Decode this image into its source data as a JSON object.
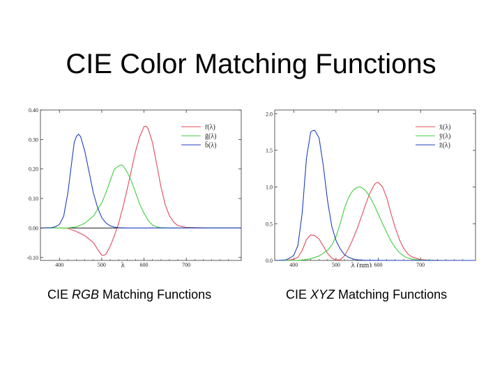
{
  "slide": {
    "title": "CIE Color Matching Functions"
  },
  "captions": [
    {
      "prefix": "CIE ",
      "italic": "RGB",
      "suffix": " Matching Functions"
    },
    {
      "prefix": "CIE ",
      "italic": "XYZ",
      "suffix": " Matching Functions"
    }
  ],
  "chart_data": [
    {
      "type": "line",
      "xlabel": "λ",
      "ylabel": "",
      "xlim": [
        355,
        830
      ],
      "ylim": [
        -0.11,
        0.4
      ],
      "x_ticks": [
        400,
        500,
        600,
        700
      ],
      "y_ticks": [
        -0.1,
        0.0,
        0.1,
        0.2,
        0.3,
        0.4
      ],
      "y_tick_labels": [
        "-0.10",
        "0.00",
        "0.10",
        "0.20",
        "0.30",
        "0.40"
      ],
      "zero_line": true,
      "legend_position": "top-right",
      "series": [
        {
          "name": "r̄(λ)",
          "base": "r",
          "color": "#e04a5a",
          "points": [
            [
              360,
              0.0
            ],
            [
              380,
              0.0
            ],
            [
              400,
              0.0
            ],
            [
              420,
              -0.001
            ],
            [
              440,
              -0.012
            ],
            [
              460,
              -0.026
            ],
            [
              480,
              -0.049
            ],
            [
              490,
              -0.072
            ],
            [
              500,
              -0.092
            ],
            [
              505,
              -0.093
            ],
            [
              510,
              -0.089
            ],
            [
              520,
              -0.062
            ],
            [
              530,
              -0.026
            ],
            [
              540,
              0.016
            ],
            [
              550,
              0.07
            ],
            [
              560,
              0.13
            ],
            [
              570,
              0.195
            ],
            [
              580,
              0.26
            ],
            [
              590,
              0.31
            ],
            [
              600,
              0.344
            ],
            [
              605,
              0.345
            ],
            [
              610,
              0.336
            ],
            [
              620,
              0.29
            ],
            [
              630,
              0.216
            ],
            [
              640,
              0.14
            ],
            [
              650,
              0.08
            ],
            [
              660,
              0.042
            ],
            [
              670,
              0.02
            ],
            [
              680,
              0.008
            ],
            [
              700,
              0.002
            ],
            [
              750,
              0.0
            ],
            [
              830,
              0.0
            ]
          ]
        },
        {
          "name": "ḡ(λ)",
          "base": "g",
          "color": "#3ecf3e",
          "points": [
            [
              360,
              0.0
            ],
            [
              380,
              0.0
            ],
            [
              400,
              0.0
            ],
            [
              420,
              0.0
            ],
            [
              440,
              0.004
            ],
            [
              460,
              0.016
            ],
            [
              480,
              0.04
            ],
            [
              500,
              0.085
            ],
            [
              510,
              0.12
            ],
            [
              520,
              0.16
            ],
            [
              530,
              0.2
            ],
            [
              540,
              0.21
            ],
            [
              546,
              0.214
            ],
            [
              550,
              0.212
            ],
            [
              560,
              0.19
            ],
            [
              570,
              0.16
            ],
            [
              580,
              0.12
            ],
            [
              590,
              0.08
            ],
            [
              600,
              0.05
            ],
            [
              610,
              0.025
            ],
            [
              620,
              0.01
            ],
            [
              630,
              0.004
            ],
            [
              640,
              0.001
            ],
            [
              660,
              0.0
            ],
            [
              700,
              0.0
            ],
            [
              830,
              0.0
            ]
          ]
        },
        {
          "name": "b̄(λ)",
          "base": "b",
          "color": "#1f3fbf",
          "points": [
            [
              360,
              0.0
            ],
            [
              380,
              0.001
            ],
            [
              390,
              0.004
            ],
            [
              400,
              0.012
            ],
            [
              410,
              0.04
            ],
            [
              420,
              0.12
            ],
            [
              430,
              0.235
            ],
            [
              435,
              0.29
            ],
            [
              440,
              0.31
            ],
            [
              445,
              0.318
            ],
            [
              450,
              0.31
            ],
            [
              460,
              0.26
            ],
            [
              470,
              0.19
            ],
            [
              480,
              0.12
            ],
            [
              490,
              0.07
            ],
            [
              500,
              0.035
            ],
            [
              510,
              0.017
            ],
            [
              520,
              0.007
            ],
            [
              530,
              0.003
            ],
            [
              540,
              0.001
            ],
            [
              560,
              0.0
            ],
            [
              600,
              0.0
            ],
            [
              830,
              0.0
            ]
          ]
        }
      ]
    },
    {
      "type": "line",
      "xlabel": "λ (nm)",
      "ylabel": "",
      "xlim": [
        355,
        830
      ],
      "ylim": [
        0,
        2.05
      ],
      "x_ticks": [
        400,
        500,
        600,
        700
      ],
      "y_ticks": [
        0.0,
        0.5,
        1.0,
        1.5,
        2.0
      ],
      "y_tick_labels": [
        "0.0",
        "0.5",
        "1.0",
        "1.5",
        "2.0"
      ],
      "zero_line": false,
      "legend_position": "top-right",
      "series": [
        {
          "name": "x̄(λ)",
          "base": "x",
          "color": "#e04a5a",
          "points": [
            [
              360,
              0.0
            ],
            [
              380,
              0.001
            ],
            [
              400,
              0.014
            ],
            [
              410,
              0.044
            ],
            [
              420,
              0.134
            ],
            [
              430,
              0.284
            ],
            [
              440,
              0.348
            ],
            [
              450,
              0.336
            ],
            [
              460,
              0.291
            ],
            [
              470,
              0.195
            ],
            [
              480,
              0.096
            ],
            [
              490,
              0.032
            ],
            [
              500,
              0.005
            ],
            [
              510,
              0.009
            ],
            [
              520,
              0.063
            ],
            [
              530,
              0.165
            ],
            [
              540,
              0.29
            ],
            [
              550,
              0.433
            ],
            [
              560,
              0.595
            ],
            [
              570,
              0.762
            ],
            [
              580,
              0.916
            ],
            [
              590,
              1.026
            ],
            [
              595,
              1.057
            ],
            [
              600,
              1.062
            ],
            [
              610,
              1.003
            ],
            [
              620,
              0.854
            ],
            [
              630,
              0.642
            ],
            [
              640,
              0.448
            ],
            [
              650,
              0.284
            ],
            [
              660,
              0.165
            ],
            [
              670,
              0.087
            ],
            [
              680,
              0.047
            ],
            [
              700,
              0.011
            ],
            [
              720,
              0.003
            ],
            [
              750,
              0.0
            ],
            [
              830,
              0.0
            ]
          ]
        },
        {
          "name": "ȳ(λ)",
          "base": "y",
          "color": "#3ecf3e",
          "points": [
            [
              360,
              0.0
            ],
            [
              380,
              0.0
            ],
            [
              400,
              0.0
            ],
            [
              420,
              0.004
            ],
            [
              440,
              0.023
            ],
            [
              460,
              0.06
            ],
            [
              480,
              0.139
            ],
            [
              490,
              0.208
            ],
            [
              500,
              0.323
            ],
            [
              510,
              0.503
            ],
            [
              520,
              0.71
            ],
            [
              530,
              0.862
            ],
            [
              540,
              0.954
            ],
            [
              550,
              0.995
            ],
            [
              555,
              1.0
            ],
            [
              560,
              0.995
            ],
            [
              570,
              0.952
            ],
            [
              580,
              0.87
            ],
            [
              590,
              0.757
            ],
            [
              600,
              0.631
            ],
            [
              610,
              0.503
            ],
            [
              620,
              0.381
            ],
            [
              630,
              0.265
            ],
            [
              640,
              0.175
            ],
            [
              650,
              0.107
            ],
            [
              660,
              0.061
            ],
            [
              670,
              0.032
            ],
            [
              680,
              0.017
            ],
            [
              700,
              0.004
            ],
            [
              750,
              0.0
            ],
            [
              830,
              0.0
            ]
          ]
        },
        {
          "name": "z̄(λ)",
          "base": "z",
          "color": "#1f3fbf",
          "points": [
            [
              360,
              0.0
            ],
            [
              380,
              0.006
            ],
            [
              390,
              0.03
            ],
            [
              400,
              0.068
            ],
            [
              410,
              0.207
            ],
            [
              420,
              0.646
            ],
            [
              430,
              1.386
            ],
            [
              440,
              1.747
            ],
            [
              445,
              1.77
            ],
            [
              450,
              1.772
            ],
            [
              460,
              1.669
            ],
            [
              470,
              1.288
            ],
            [
              480,
              0.813
            ],
            [
              490,
              0.465
            ],
            [
              500,
              0.272
            ],
            [
              510,
              0.158
            ],
            [
              520,
              0.078
            ],
            [
              530,
              0.042
            ],
            [
              540,
              0.02
            ],
            [
              550,
              0.009
            ],
            [
              560,
              0.004
            ],
            [
              570,
              0.002
            ],
            [
              580,
              0.002
            ],
            [
              600,
              0.001
            ],
            [
              650,
              0.0
            ],
            [
              830,
              0.0
            ]
          ]
        }
      ]
    }
  ]
}
